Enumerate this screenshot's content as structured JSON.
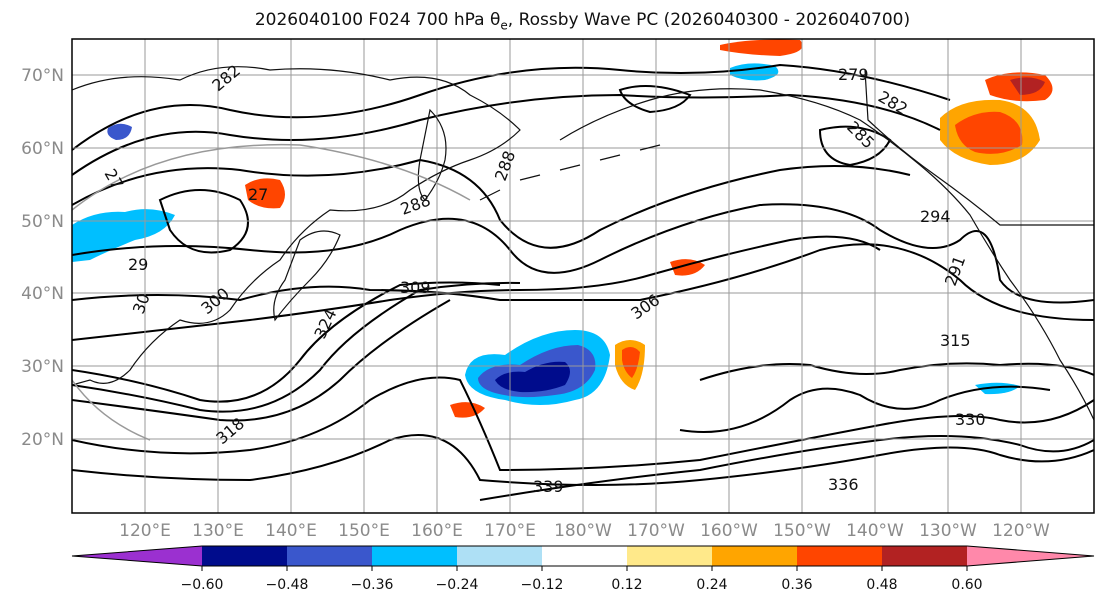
{
  "title": {
    "prefix": "2026040100 F024 700 hPa θ",
    "subscript": "e",
    "suffix": ", Rossby Wave PC (2026040300 - 2026040700)"
  },
  "map": {
    "lat_labels": [
      "70°N",
      "60°N",
      "50°N",
      "40°N",
      "30°N",
      "20°N"
    ],
    "lon_labels": [
      "120°E",
      "130°E",
      "140°E",
      "150°E",
      "160°E",
      "170°E",
      "180°W",
      "170°W",
      "160°W",
      "150°W",
      "140°W",
      "130°W",
      "120°W"
    ],
    "contour_labels": [
      "282",
      "279",
      "282",
      "285",
      "288",
      "288",
      "291",
      "294",
      "300",
      "306",
      "309",
      "315",
      "318",
      "324",
      "330",
      "336",
      "339",
      "27",
      "29",
      "30",
      "27"
    ]
  },
  "colorbar": {
    "levels": [
      "−0.60",
      "−0.48",
      "−0.36",
      "−0.24",
      "−0.12",
      "0.12",
      "0.24",
      "0.36",
      "0.48",
      "0.60"
    ],
    "colors": [
      "#9b30d0",
      "#000c8c",
      "#3a57cc",
      "#00bfff",
      "#aee0f5",
      "#ffffff",
      "#ffe98a",
      "#ffa500",
      "#ff4500",
      "#b22222",
      "#ff88aa"
    ]
  }
}
